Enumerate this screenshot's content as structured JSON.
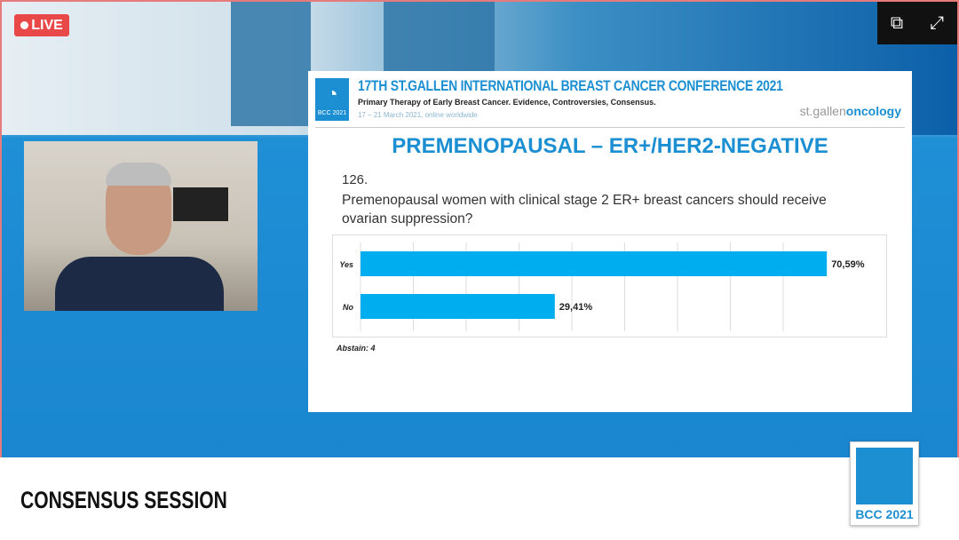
{
  "stream": {
    "live_label": "LIVE",
    "controls": [
      "popout-icon",
      "fullscreen-icon"
    ]
  },
  "slide": {
    "conference_title": "17TH ST.GALLEN INTERNATIONAL BREAST CANCER CONFERENCE 2021",
    "conference_subtitle": "Primary Therapy of Early Breast Cancer. Evidence, Controversies, Consensus.",
    "conference_dates": "17 – 21 March 2021, online worldwide",
    "logo_text": "BCC 2021",
    "brand_left": "st.gallen",
    "brand_right": "oncology",
    "topic": "PREMENOPAUSAL – ER+/HER2-NEGATIVE",
    "question_number": "126.",
    "question": "Premenopausal women with clinical stage 2 ER+ breast cancers should receive ovarian suppression?",
    "abstain": "Abstain: 4"
  },
  "chart_data": {
    "type": "bar",
    "orientation": "horizontal",
    "categories": [
      "Yes",
      "No"
    ],
    "values": [
      70.59,
      29.41
    ],
    "data_labels": [
      "70,59%",
      "29,41%"
    ],
    "bar_color": "#00adef",
    "grid": true
  },
  "footer": {
    "session_title": "CONSENSUS SESSION",
    "logo_text": "BCC 2021"
  }
}
